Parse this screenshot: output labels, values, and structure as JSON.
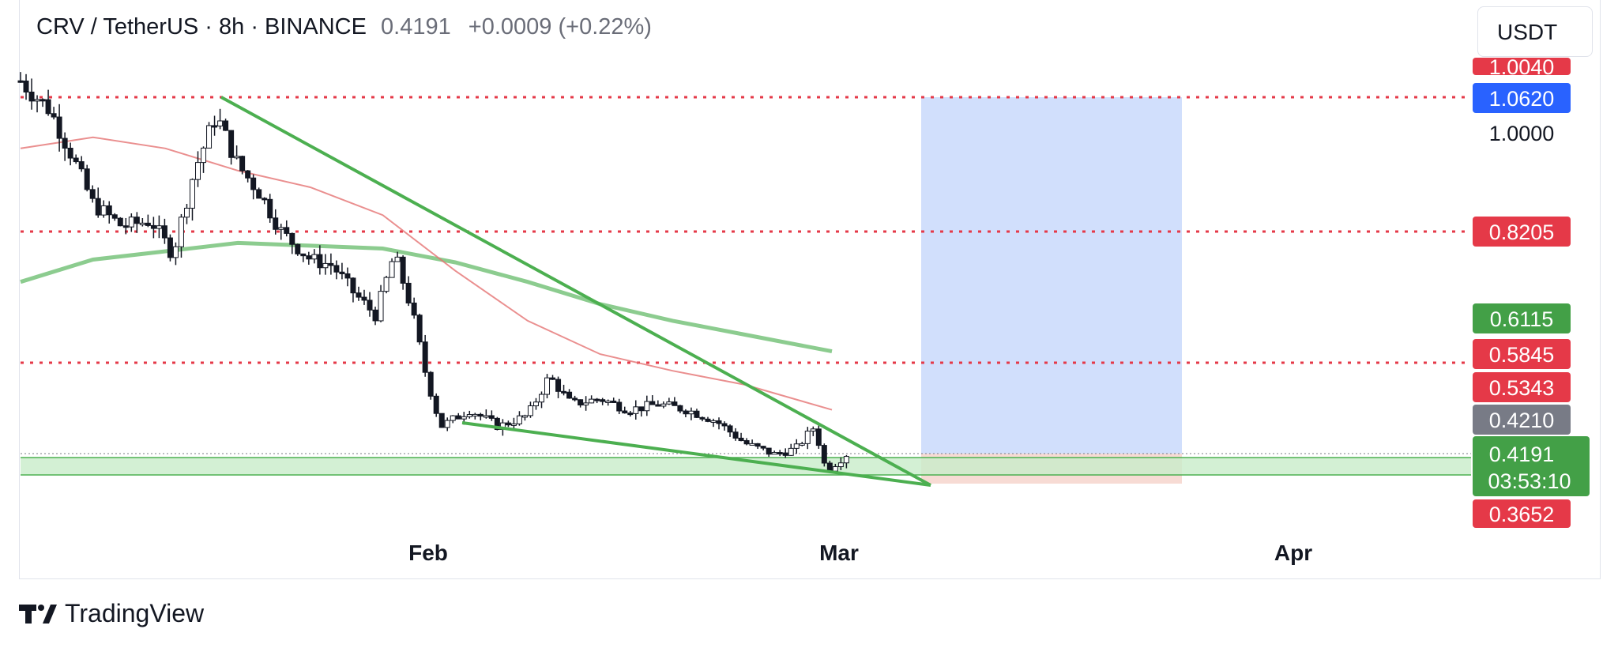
{
  "header": {
    "symbol": "CRV / TetherUS · 8h · BINANCE",
    "last_price": "0.4191",
    "change": "+0.0009 (+0.22%)"
  },
  "toolbar": {
    "currency": "USDT"
  },
  "footer": {
    "brand": "TradingView"
  },
  "colors": {
    "up": "#26a69a",
    "down": "#ef5350",
    "trend": "#4caf50",
    "ma_fast": "#e57373",
    "ma_slow": "#66bb6a",
    "level": "#e53948",
    "target_zone": "#c9d9fb",
    "stop_zone": "#f6d5cd"
  },
  "chart_data": {
    "type": "candlestick",
    "symbol": "CRV/USDT",
    "timeframe": "8h",
    "x_ticks": [
      "Feb",
      "Mar",
      "Apr"
    ],
    "ylim": [
      0.33,
      1.12
    ],
    "grid": false,
    "price_scale_labels": [
      "1.0040",
      "1.0620",
      "1.0000",
      "0.8205",
      "0.6115",
      "0.5845",
      "0.5343",
      "0.4210",
      "0.4191",
      "03:53:10",
      "0.3652"
    ],
    "horizontal_levels": [
      1.062,
      0.8205,
      0.5845
    ],
    "support_zone": [
      0.378,
      0.405
    ],
    "current_price": 0.4191,
    "position": {
      "entry": 0.421,
      "target": 1.062,
      "stop": 0.3652
    },
    "trendlines": [
      {
        "name": "upper",
        "from": {
          "t": 0.128,
          "price": 1.06
        },
        "to": {
          "t": 0.578,
          "price": 0.355
        }
      },
      {
        "name": "lower",
        "from": {
          "t": 0.283,
          "price": 0.475
        },
        "to": {
          "t": 0.578,
          "price": 0.355
        }
      }
    ],
    "moving_averages": [
      {
        "name": "MA slow",
        "values": [
          [
            0,
            0.73
          ],
          [
            0.05,
            0.77
          ],
          [
            0.1,
            0.785
          ],
          [
            0.15,
            0.8
          ],
          [
            0.2,
            0.795
          ],
          [
            0.25,
            0.79
          ],
          [
            0.3,
            0.765
          ],
          [
            0.35,
            0.73
          ],
          [
            0.4,
            0.69
          ],
          [
            0.45,
            0.66
          ],
          [
            0.5,
            0.635
          ],
          [
            0.56,
            0.605
          ]
        ]
      },
      {
        "name": "MA fast",
        "values": [
          [
            0,
            0.97
          ],
          [
            0.05,
            0.99
          ],
          [
            0.1,
            0.97
          ],
          [
            0.15,
            0.93
          ],
          [
            0.2,
            0.9
          ],
          [
            0.25,
            0.85
          ],
          [
            0.3,
            0.75
          ],
          [
            0.35,
            0.66
          ],
          [
            0.4,
            0.6
          ],
          [
            0.45,
            0.57
          ],
          [
            0.5,
            0.545
          ],
          [
            0.56,
            0.5
          ]
        ]
      }
    ],
    "price_path": [
      [
        0,
        1.09
      ],
      [
        0.02,
        1.04
      ],
      [
        0.035,
        0.96
      ],
      [
        0.05,
        0.87
      ],
      [
        0.07,
        0.83
      ],
      [
        0.09,
        0.84
      ],
      [
        0.105,
        0.78
      ],
      [
        0.12,
        0.93
      ],
      [
        0.135,
        1.03
      ],
      [
        0.15,
        0.94
      ],
      [
        0.165,
        0.89
      ],
      [
        0.18,
        0.82
      ],
      [
        0.2,
        0.77
      ],
      [
        0.215,
        0.76
      ],
      [
        0.23,
        0.71
      ],
      [
        0.245,
        0.67
      ],
      [
        0.258,
        0.78
      ],
      [
        0.27,
        0.68
      ],
      [
        0.28,
        0.56
      ],
      [
        0.29,
        0.47
      ],
      [
        0.31,
        0.5
      ],
      [
        0.33,
        0.47
      ],
      [
        0.35,
        0.49
      ],
      [
        0.365,
        0.56
      ],
      [
        0.38,
        0.51
      ],
      [
        0.4,
        0.52
      ],
      [
        0.42,
        0.5
      ],
      [
        0.44,
        0.51
      ],
      [
        0.46,
        0.5
      ],
      [
        0.48,
        0.48
      ],
      [
        0.5,
        0.44
      ],
      [
        0.52,
        0.42
      ],
      [
        0.535,
        0.43
      ],
      [
        0.548,
        0.47
      ],
      [
        0.556,
        0.39
      ],
      [
        0.563,
        0.405
      ],
      [
        0.57,
        0.42
      ]
    ]
  }
}
